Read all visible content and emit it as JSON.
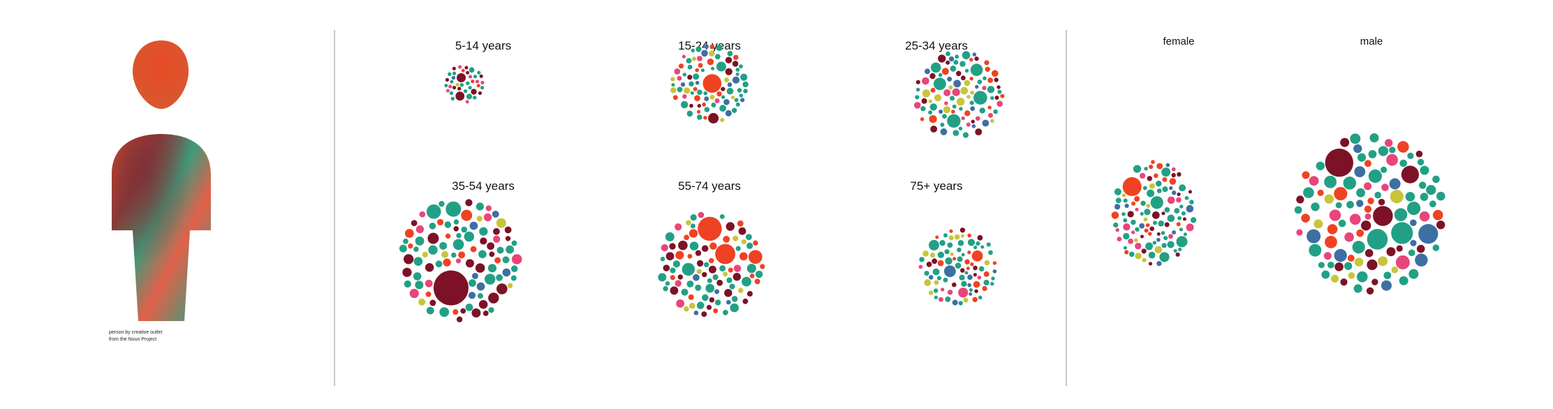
{
  "person_panel": {
    "credit_line1": "person by creative outlet",
    "credit_line2": "from the Noun Project"
  },
  "colors": {
    "orange": "#ef4222",
    "teal": "#22a085",
    "dark_red": "#7d1226",
    "pink": "#e8457b",
    "yellow": "#c7c53a",
    "blue": "#3d6fa3",
    "divider": "#c9c9c9"
  },
  "chart_data": {
    "type": "bubble-cluster",
    "groups": [
      {
        "label": "5-14 years",
        "size": 0.33
      },
      {
        "label": "15-24 years",
        "size": 0.62
      },
      {
        "label": "25-34 years",
        "size": 0.75
      },
      {
        "label": "35-54 years",
        "size": 1.0
      },
      {
        "label": "55-74 years",
        "size": 0.85
      },
      {
        "label": "75+ years",
        "size": 0.65
      },
      {
        "label": "female",
        "size": 0.78
      },
      {
        "label": "male",
        "size": 1.25
      }
    ]
  }
}
